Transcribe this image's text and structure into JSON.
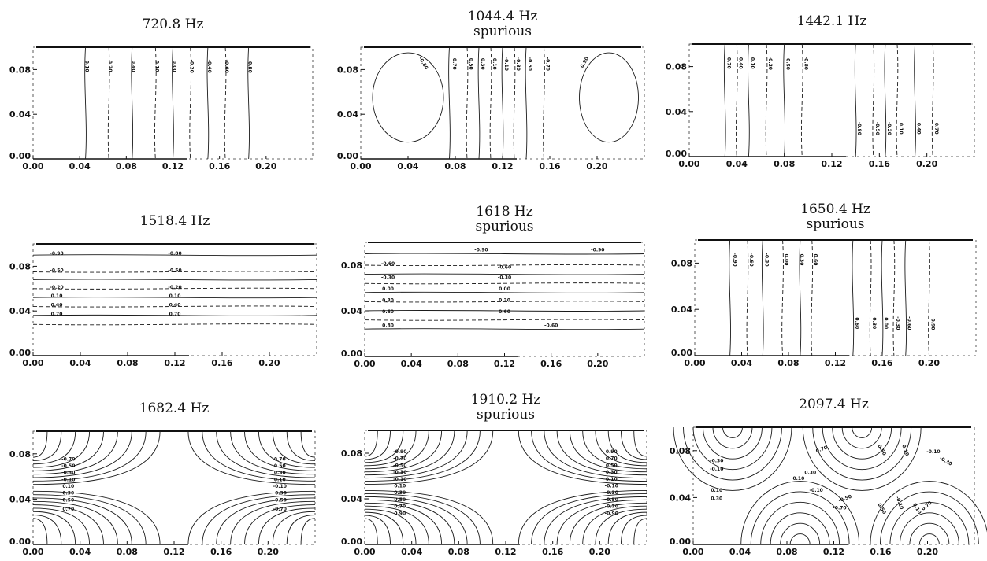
{
  "chart_data": [
    {
      "type": "contour",
      "title": "720.8 Hz",
      "xticks": [
        "0.00",
        "0.04",
        "0.08",
        "0.12",
        "0.16",
        "0.20"
      ],
      "yticks": [
        "0.00",
        "0.04",
        "0.08"
      ],
      "xlim": [
        0.0,
        0.24
      ],
      "ylim": [
        0.0,
        0.1
      ],
      "pattern": "vertical",
      "lines": [
        0.045,
        0.065,
        0.085,
        0.105,
        0.12,
        0.135,
        0.15,
        0.165,
        0.185
      ],
      "contour_labels": [
        {
          "text": "0.10",
          "x": 0.045,
          "y": 0.083,
          "rot": 90
        },
        {
          "text": "0.20",
          "x": 0.065,
          "y": 0.083,
          "rot": 90
        },
        {
          "text": "0.40",
          "x": 0.085,
          "y": 0.083,
          "rot": 90
        },
        {
          "text": "0.10",
          "x": 0.105,
          "y": 0.083,
          "rot": 90
        },
        {
          "text": "0.00",
          "x": 0.12,
          "y": 0.083,
          "rot": 90
        },
        {
          "text": "-0.20",
          "x": 0.135,
          "y": 0.083,
          "rot": 90
        },
        {
          "text": "-0.40",
          "x": 0.15,
          "y": 0.083,
          "rot": 90
        },
        {
          "text": "-0.60",
          "x": 0.165,
          "y": 0.083,
          "rot": 90
        },
        {
          "text": "-0.80",
          "x": 0.185,
          "y": 0.083,
          "rot": 90
        }
      ]
    },
    {
      "type": "contour",
      "title": "1044.4 Hz",
      "subtitle": "spurious",
      "xticks": [
        "0.00",
        "0.04",
        "0.08",
        "0.12",
        "0.16",
        "0.20"
      ],
      "yticks": [
        "0.00",
        "0.04",
        "0.08"
      ],
      "xlim": [
        0.0,
        0.24
      ],
      "ylim": [
        0.0,
        0.1
      ],
      "pattern": "vertical",
      "lines": [
        0.075,
        0.09,
        0.1,
        0.11,
        0.12,
        0.13,
        0.14,
        0.155
      ],
      "ovals": [
        {
          "cx": 0.04,
          "cy": 0.055,
          "rx": 0.03,
          "ry": 0.04
        },
        {
          "cx": 0.21,
          "cy": 0.055,
          "rx": 0.025,
          "ry": 0.04
        }
      ],
      "contour_labels": [
        {
          "text": "-0.80",
          "x": 0.052,
          "y": 0.085,
          "rot": 60
        },
        {
          "text": "0.70",
          "x": 0.078,
          "y": 0.085,
          "rot": 90
        },
        {
          "text": "0.50",
          "x": 0.092,
          "y": 0.085,
          "rot": 90
        },
        {
          "text": "0.30",
          "x": 0.102,
          "y": 0.085,
          "rot": 90
        },
        {
          "text": "0.10",
          "x": 0.112,
          "y": 0.085,
          "rot": 90
        },
        {
          "text": "-0.10",
          "x": 0.122,
          "y": 0.085,
          "rot": 90
        },
        {
          "text": "-0.30",
          "x": 0.132,
          "y": 0.085,
          "rot": 90
        },
        {
          "text": "-0.50",
          "x": 0.142,
          "y": 0.085,
          "rot": 90
        },
        {
          "text": "-0.70",
          "x": 0.157,
          "y": 0.085,
          "rot": 90
        },
        {
          "text": "-0.90",
          "x": 0.19,
          "y": 0.085,
          "rot": -60
        }
      ]
    },
    {
      "type": "contour",
      "title": "1442.1 Hz",
      "xticks": [
        "0.00",
        "0.04",
        "0.08",
        "0.12",
        "0.16",
        "0.20"
      ],
      "yticks": [
        "0.00",
        "0.04",
        "0.08"
      ],
      "xlim": [
        0.0,
        0.24
      ],
      "ylim": [
        0.0,
        0.1
      ],
      "pattern": "vertical",
      "lines": [
        0.03,
        0.04,
        0.05,
        0.065,
        0.08,
        0.095,
        0.14,
        0.155,
        0.165,
        0.175,
        0.19,
        0.205
      ],
      "contour_labels": [
        {
          "text": "0.70",
          "x": 0.032,
          "y": 0.083,
          "rot": 90
        },
        {
          "text": "0.40",
          "x": 0.042,
          "y": 0.083,
          "rot": 90
        },
        {
          "text": "0.10",
          "x": 0.052,
          "y": 0.083,
          "rot": 90
        },
        {
          "text": "-0.20",
          "x": 0.067,
          "y": 0.083,
          "rot": 90
        },
        {
          "text": "-0.50",
          "x": 0.082,
          "y": 0.083,
          "rot": 90
        },
        {
          "text": "-0.80",
          "x": 0.097,
          "y": 0.083,
          "rot": 90
        },
        {
          "text": "-0.80",
          "x": 0.142,
          "y": 0.025,
          "rot": 90
        },
        {
          "text": "-0.50",
          "x": 0.157,
          "y": 0.025,
          "rot": 90
        },
        {
          "text": "-0.20",
          "x": 0.167,
          "y": 0.025,
          "rot": 90
        },
        {
          "text": "0.10",
          "x": 0.177,
          "y": 0.025,
          "rot": 90
        },
        {
          "text": "0.40",
          "x": 0.192,
          "y": 0.025,
          "rot": 90
        },
        {
          "text": "0.70",
          "x": 0.207,
          "y": 0.025,
          "rot": 90
        }
      ]
    },
    {
      "type": "contour",
      "title": "1518.4 Hz",
      "xticks": [
        "0.00",
        "0.04",
        "0.08",
        "0.12",
        "0.16",
        "0.20"
      ],
      "yticks": [
        "0.00",
        "0.04",
        "0.08"
      ],
      "xlim": [
        0.0,
        0.24
      ],
      "ylim": [
        0.0,
        0.1
      ],
      "pattern": "horizontal",
      "lines": [
        0.09,
        0.075,
        0.068,
        0.06,
        0.052,
        0.044,
        0.036,
        0.028
      ],
      "contour_labels": [
        {
          "text": "-0.90",
          "x": 0.02,
          "y": 0.09,
          "rot": 0
        },
        {
          "text": "-0.80",
          "x": 0.12,
          "y": 0.09,
          "rot": 0
        },
        {
          "text": "-0.50",
          "x": 0.02,
          "y": 0.075,
          "rot": 0
        },
        {
          "text": "-0.50",
          "x": 0.12,
          "y": 0.075,
          "rot": 0
        },
        {
          "text": "-0.20",
          "x": 0.02,
          "y": 0.06,
          "rot": 0
        },
        {
          "text": "-0.20",
          "x": 0.12,
          "y": 0.06,
          "rot": 0
        },
        {
          "text": "0.10",
          "x": 0.02,
          "y": 0.052,
          "rot": 0
        },
        {
          "text": "0.10",
          "x": 0.12,
          "y": 0.052,
          "rot": 0
        },
        {
          "text": "0.40",
          "x": 0.02,
          "y": 0.044,
          "rot": 0
        },
        {
          "text": "0.40",
          "x": 0.12,
          "y": 0.044,
          "rot": 0
        },
        {
          "text": "0.70",
          "x": 0.02,
          "y": 0.036,
          "rot": 0
        },
        {
          "text": "0.70",
          "x": 0.12,
          "y": 0.036,
          "rot": 0
        }
      ]
    },
    {
      "type": "contour",
      "title": "1618 Hz",
      "subtitle": "spurious",
      "xticks": [
        "0.00",
        "0.04",
        "0.08",
        "0.12",
        "0.16",
        "0.20"
      ],
      "yticks": [
        "0.00",
        "0.04",
        "0.08"
      ],
      "xlim": [
        0.0,
        0.24
      ],
      "ylim": [
        0.0,
        0.1
      ],
      "pattern": "horizontal",
      "lines": [
        0.09,
        0.08,
        0.072,
        0.064,
        0.056,
        0.048,
        0.04,
        0.032,
        0.024
      ],
      "contour_labels": [
        {
          "text": "-0.90",
          "x": 0.1,
          "y": 0.092,
          "rot": 0
        },
        {
          "text": "-0.90",
          "x": 0.2,
          "y": 0.092,
          "rot": 0
        },
        {
          "text": "-0.60",
          "x": 0.02,
          "y": 0.08,
          "rot": 0
        },
        {
          "text": "-0.60",
          "x": 0.12,
          "y": 0.077,
          "rot": 0
        },
        {
          "text": "-0.30",
          "x": 0.02,
          "y": 0.068,
          "rot": 0
        },
        {
          "text": "-0.30",
          "x": 0.12,
          "y": 0.068,
          "rot": 0
        },
        {
          "text": "0.00",
          "x": 0.02,
          "y": 0.058,
          "rot": 0
        },
        {
          "text": "0.00",
          "x": 0.12,
          "y": 0.058,
          "rot": 0
        },
        {
          "text": "0.30",
          "x": 0.02,
          "y": 0.048,
          "rot": 0
        },
        {
          "text": "0.30",
          "x": 0.12,
          "y": 0.048,
          "rot": 0
        },
        {
          "text": "0.60",
          "x": 0.02,
          "y": 0.038,
          "rot": 0
        },
        {
          "text": "0.60",
          "x": 0.12,
          "y": 0.038,
          "rot": 0
        },
        {
          "text": "0.80",
          "x": 0.02,
          "y": 0.026,
          "rot": 0
        },
        {
          "text": "-0.60",
          "x": 0.16,
          "y": 0.026,
          "rot": 0
        }
      ]
    },
    {
      "type": "contour",
      "title": "1650.4 Hz",
      "subtitle": "spurious",
      "xticks": [
        "0.00",
        "0.04",
        "0.08",
        "0.12",
        "0.16",
        "0.20"
      ],
      "yticks": [
        "0.00",
        "0.04",
        "0.08"
      ],
      "xlim": [
        0.0,
        0.24
      ],
      "ylim": [
        0.0,
        0.1
      ],
      "pattern": "vertical",
      "lines": [
        0.03,
        0.045,
        0.058,
        0.075,
        0.09,
        0.1,
        0.135,
        0.15,
        0.16,
        0.17,
        0.18,
        0.2
      ],
      "contour_labels": [
        {
          "text": "-0.90",
          "x": 0.033,
          "y": 0.083,
          "rot": 90
        },
        {
          "text": "-0.60",
          "x": 0.047,
          "y": 0.083,
          "rot": 90
        },
        {
          "text": "-0.30",
          "x": 0.06,
          "y": 0.083,
          "rot": 90
        },
        {
          "text": "0.00",
          "x": 0.077,
          "y": 0.083,
          "rot": 90
        },
        {
          "text": "0.30",
          "x": 0.09,
          "y": 0.083,
          "rot": 90
        },
        {
          "text": "0.60",
          "x": 0.102,
          "y": 0.083,
          "rot": 90
        },
        {
          "text": "0.60",
          "x": 0.137,
          "y": 0.028,
          "rot": 90
        },
        {
          "text": "0.30",
          "x": 0.152,
          "y": 0.028,
          "rot": 90
        },
        {
          "text": "0.00",
          "x": 0.162,
          "y": 0.028,
          "rot": 90
        },
        {
          "text": "-0.30",
          "x": 0.172,
          "y": 0.028,
          "rot": 90
        },
        {
          "text": "-0.60",
          "x": 0.182,
          "y": 0.028,
          "rot": 90
        },
        {
          "text": "-0.90",
          "x": 0.202,
          "y": 0.028,
          "rot": 90
        }
      ]
    },
    {
      "type": "contour",
      "title": "1682.4 Hz",
      "xticks": [
        "0.00",
        "0.04",
        "0.08",
        "0.12",
        "0.16",
        "0.20"
      ],
      "yticks": [
        "0.00",
        "0.04",
        "0.08"
      ],
      "xlim": [
        0.0,
        0.24
      ],
      "ylim": [
        0.0,
        0.1
      ],
      "pattern": "saddle",
      "levels": 9,
      "contour_labels": [
        {
          "text": "-0.70",
          "x": 0.03,
          "y": 0.074,
          "rot": 0
        },
        {
          "text": "-0.50",
          "x": 0.03,
          "y": 0.068,
          "rot": 0
        },
        {
          "text": "-0.30",
          "x": 0.03,
          "y": 0.062,
          "rot": 0
        },
        {
          "text": "-0.10",
          "x": 0.03,
          "y": 0.056,
          "rot": 0
        },
        {
          "text": "0.10",
          "x": 0.03,
          "y": 0.05,
          "rot": 0
        },
        {
          "text": "0.30",
          "x": 0.03,
          "y": 0.044,
          "rot": 0
        },
        {
          "text": "0.50",
          "x": 0.03,
          "y": 0.038,
          "rot": 0
        },
        {
          "text": "0.70",
          "x": 0.03,
          "y": 0.03,
          "rot": 0
        },
        {
          "text": "0.70",
          "x": 0.21,
          "y": 0.074,
          "rot": 0
        },
        {
          "text": "0.50",
          "x": 0.21,
          "y": 0.068,
          "rot": 0
        },
        {
          "text": "0.30",
          "x": 0.21,
          "y": 0.062,
          "rot": 0
        },
        {
          "text": "0.10",
          "x": 0.21,
          "y": 0.056,
          "rot": 0
        },
        {
          "text": "-0.10",
          "x": 0.21,
          "y": 0.05,
          "rot": 0
        },
        {
          "text": "-0.30",
          "x": 0.21,
          "y": 0.044,
          "rot": 0
        },
        {
          "text": "-0.50",
          "x": 0.21,
          "y": 0.038,
          "rot": 0
        },
        {
          "text": "-0.70",
          "x": 0.21,
          "y": 0.03,
          "rot": 0
        }
      ]
    },
    {
      "type": "contour",
      "title": "1910.2 Hz",
      "subtitle": "spurious",
      "xticks": [
        "0.00",
        "0.04",
        "0.08",
        "0.12",
        "0.16",
        "0.20"
      ],
      "yticks": [
        "0.00",
        "0.04",
        "0.08"
      ],
      "xlim": [
        0.0,
        0.24
      ],
      "ylim": [
        0.0,
        0.1
      ],
      "pattern": "saddle",
      "levels": 10,
      "contour_labels": [
        {
          "text": "-0.90",
          "x": 0.03,
          "y": 0.08,
          "rot": 0
        },
        {
          "text": "-0.70",
          "x": 0.03,
          "y": 0.074,
          "rot": 0
        },
        {
          "text": "-0.50",
          "x": 0.03,
          "y": 0.068,
          "rot": 0
        },
        {
          "text": "-0.30",
          "x": 0.03,
          "y": 0.062,
          "rot": 0
        },
        {
          "text": "-0.10",
          "x": 0.03,
          "y": 0.056,
          "rot": 0
        },
        {
          "text": "0.10",
          "x": 0.03,
          "y": 0.05,
          "rot": 0
        },
        {
          "text": "0.30",
          "x": 0.03,
          "y": 0.044,
          "rot": 0
        },
        {
          "text": "0.50",
          "x": 0.03,
          "y": 0.038,
          "rot": 0
        },
        {
          "text": "0.70",
          "x": 0.03,
          "y": 0.032,
          "rot": 0
        },
        {
          "text": "0.90",
          "x": 0.03,
          "y": 0.026,
          "rot": 0
        },
        {
          "text": "0.90",
          "x": 0.21,
          "y": 0.08,
          "rot": 0
        },
        {
          "text": "0.70",
          "x": 0.21,
          "y": 0.074,
          "rot": 0
        },
        {
          "text": "0.50",
          "x": 0.21,
          "y": 0.068,
          "rot": 0
        },
        {
          "text": "0.30",
          "x": 0.21,
          "y": 0.062,
          "rot": 0
        },
        {
          "text": "0.10",
          "x": 0.21,
          "y": 0.056,
          "rot": 0
        },
        {
          "text": "-0.10",
          "x": 0.21,
          "y": 0.05,
          "rot": 0
        },
        {
          "text": "-0.30",
          "x": 0.21,
          "y": 0.044,
          "rot": 0
        },
        {
          "text": "-0.50",
          "x": 0.21,
          "y": 0.038,
          "rot": 0
        },
        {
          "text": "-0.70",
          "x": 0.21,
          "y": 0.032,
          "rot": 0
        },
        {
          "text": "-0.90",
          "x": 0.21,
          "y": 0.026,
          "rot": 0
        }
      ]
    },
    {
      "type": "contour",
      "title": "2097.4 Hz",
      "xticks": [
        "0.00",
        "0.04",
        "0.08",
        "0.12",
        "0.16",
        "0.20"
      ],
      "yticks": [
        "0.00",
        "0.04",
        "0.08"
      ],
      "xlim": [
        0.0,
        0.24
      ],
      "ylim": [
        0.0,
        0.1
      ],
      "pattern": "cells",
      "levels": 6,
      "contour_labels": [
        {
          "text": "-0.30",
          "x": 0.02,
          "y": 0.07,
          "rot": 0
        },
        {
          "text": "-0.10",
          "x": 0.02,
          "y": 0.063,
          "rot": 0
        },
        {
          "text": "0.10",
          "x": 0.02,
          "y": 0.045,
          "rot": 0
        },
        {
          "text": "0.30",
          "x": 0.02,
          "y": 0.038,
          "rot": 0
        },
        {
          "text": "0.70",
          "x": 0.11,
          "y": 0.08,
          "rot": -20
        },
        {
          "text": "0.30",
          "x": 0.1,
          "y": 0.06,
          "rot": 0
        },
        {
          "text": "0.10",
          "x": 0.09,
          "y": 0.055,
          "rot": 0
        },
        {
          "text": "-0.10",
          "x": 0.105,
          "y": 0.045,
          "rot": 0
        },
        {
          "text": "-0.50",
          "x": 0.13,
          "y": 0.038,
          "rot": -20
        },
        {
          "text": "-0.70",
          "x": 0.125,
          "y": 0.03,
          "rot": 0
        },
        {
          "text": "0.50",
          "x": 0.16,
          "y": 0.08,
          "rot": 60
        },
        {
          "text": "0.10",
          "x": 0.18,
          "y": 0.08,
          "rot": 70
        },
        {
          "text": "-0.10",
          "x": 0.205,
          "y": 0.078,
          "rot": 0
        },
        {
          "text": "-0.30",
          "x": 0.215,
          "y": 0.07,
          "rot": 30
        },
        {
          "text": "0.10",
          "x": 0.19,
          "y": 0.03,
          "rot": 60
        },
        {
          "text": "-0.10",
          "x": 0.175,
          "y": 0.035,
          "rot": 70
        },
        {
          "text": "0.50",
          "x": 0.16,
          "y": 0.03,
          "rot": 60
        },
        {
          "text": "0.70",
          "x": 0.2,
          "y": 0.032,
          "rot": -40
        }
      ]
    }
  ]
}
